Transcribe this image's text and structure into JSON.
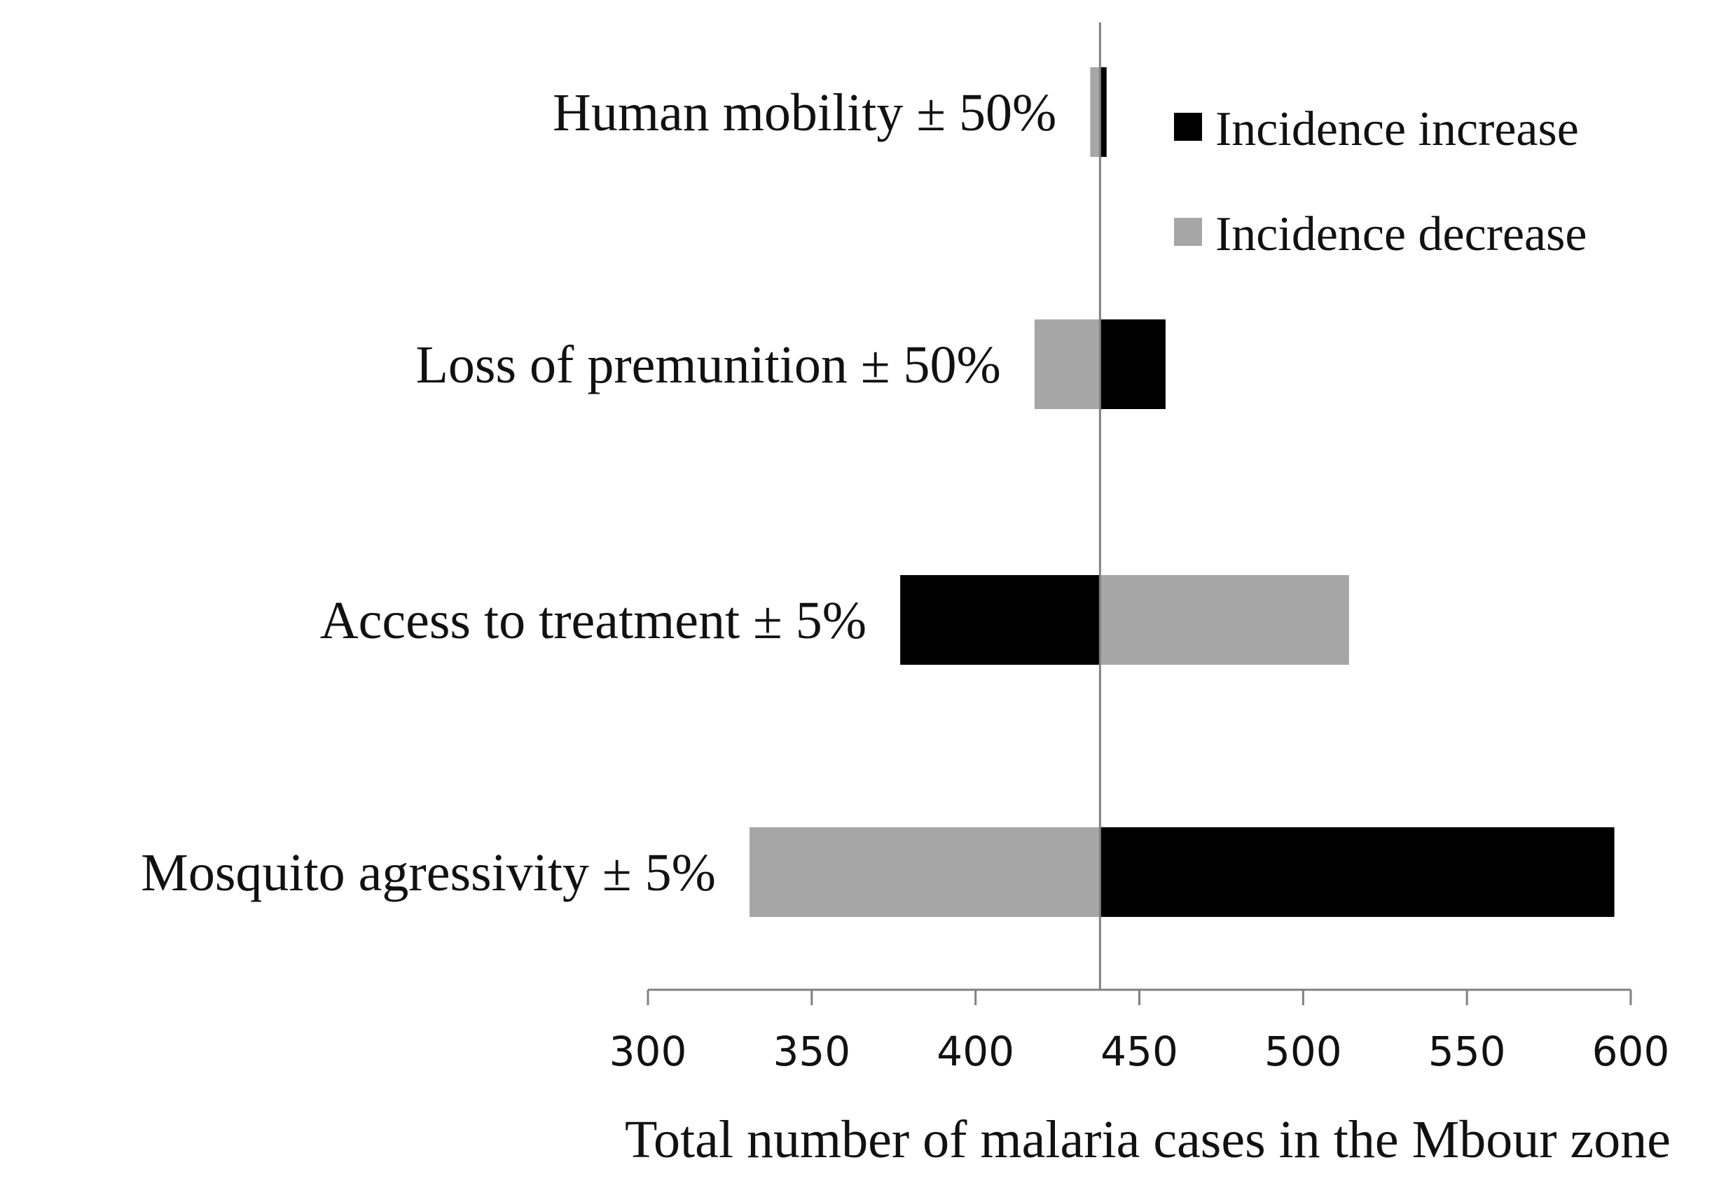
{
  "chart_data": {
    "type": "bar",
    "orientation": "horizontal",
    "subtype": "tornado",
    "baseline": 438,
    "categories": [
      "Human mobility ± 50%",
      "Loss of premunition ± 50%",
      "Access to treatment ± 5%",
      "Mosquito agressivity ± 5%"
    ],
    "series": [
      {
        "name": "Incidence increase",
        "color": "#000000",
        "ranges": [
          [
            438,
            440
          ],
          [
            438,
            458
          ],
          [
            377,
            438
          ],
          [
            438,
            595
          ]
        ]
      },
      {
        "name": "Incidence decrease",
        "color": "#a6a6a6",
        "ranges": [
          [
            435,
            438
          ],
          [
            418,
            438
          ],
          [
            438,
            514
          ],
          [
            331,
            438
          ]
        ]
      }
    ],
    "xlabel": "Total number of malaria cases in the Mbour zone",
    "xlim": [
      300,
      600
    ],
    "xticks": [
      "300",
      "350",
      "400",
      "450",
      "500",
      "550",
      "600"
    ],
    "legend_position": "top-right",
    "grid": false
  }
}
